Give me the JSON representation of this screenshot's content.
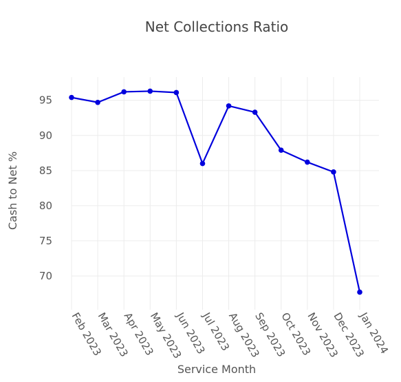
{
  "chart_data": {
    "type": "line",
    "title": "Net Collections Ratio",
    "xlabel": "Service Month",
    "ylabel": "Cash to Net %",
    "categories": [
      "Feb 2023",
      "Mar 2023",
      "Apr 2023",
      "May 2023",
      "Jun 2023",
      "Jul 2023",
      "Aug 2023",
      "Sep 2023",
      "Oct 2023",
      "Nov 2023",
      "Dec 2023",
      "Jan 2024"
    ],
    "series": [
      {
        "values": [
          95.4,
          94.7,
          96.2,
          96.3,
          96.1,
          86.0,
          94.2,
          93.3,
          87.9,
          86.2,
          84.8,
          67.7
        ],
        "color": "#0000dd"
      }
    ],
    "y_ticks": [
      70,
      75,
      80,
      85,
      90,
      95
    ],
    "ylim": [
      65.2,
      98.3
    ],
    "grid": true
  }
}
